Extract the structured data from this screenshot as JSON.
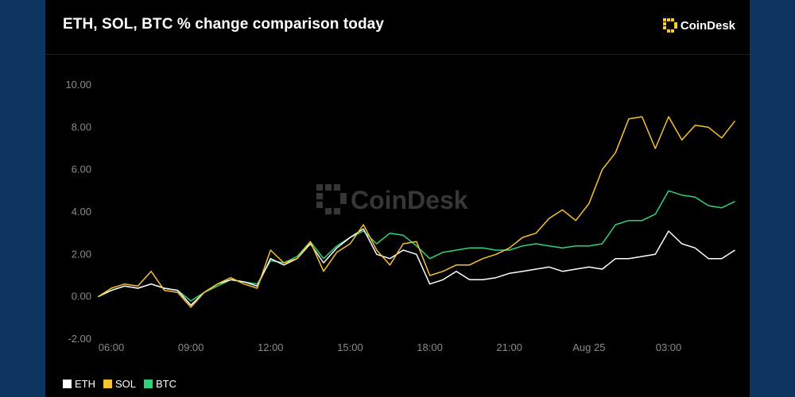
{
  "header": {
    "title": "ETH, SOL, BTC % change comparison today",
    "logo_text": "CoinDesk",
    "watermark_text": "CoinDesk"
  },
  "colors": {
    "background": "#0d3560",
    "card": "#000000",
    "brand_yellow": "#f8cf1e",
    "ETH": "#ffffff",
    "SOL": "#f4c430",
    "BTC": "#2ed47a",
    "tick_text": "#8a8a8a",
    "gridline": "#2a2a2a"
  },
  "legend": {
    "position": "bottom-left",
    "items": [
      {
        "label": "ETH",
        "color": "#ffffff"
      },
      {
        "label": "SOL",
        "color": "#f4c430"
      },
      {
        "label": "BTC",
        "color": "#2ed47a"
      }
    ]
  },
  "chart_data": {
    "type": "line",
    "title": "ETH, SOL, BTC % change comparison today",
    "xlabel": "",
    "ylabel": "",
    "ylim": [
      -2,
      10
    ],
    "xlim": [
      5.5,
      29.6
    ],
    "y_ticks": [
      10,
      8,
      6,
      4,
      2,
      0,
      -2
    ],
    "y_tick_labels": [
      "10.00",
      "8.00",
      "6.00",
      "4.00",
      "2.00",
      "0.00",
      "-2.00"
    ],
    "x_ticks": [
      6,
      9,
      12,
      15,
      18,
      21,
      24,
      27
    ],
    "x_tick_labels": [
      "06:00",
      "09:00",
      "12:00",
      "15:00",
      "18:00",
      "21:00",
      "Aug 25",
      "03:00"
    ],
    "grid": false,
    "x": [
      5.5,
      6.0,
      6.5,
      7.0,
      7.5,
      8.0,
      8.5,
      9.0,
      9.5,
      10.0,
      10.5,
      11.0,
      11.5,
      12.0,
      12.5,
      13.0,
      13.5,
      14.0,
      14.5,
      15.0,
      15.5,
      16.0,
      16.5,
      17.0,
      17.5,
      18.0,
      18.5,
      19.0,
      19.5,
      20.0,
      20.5,
      21.0,
      21.5,
      22.0,
      22.5,
      23.0,
      23.5,
      24.0,
      24.5,
      25.0,
      25.5,
      26.0,
      26.5,
      27.0,
      27.5,
      28.0,
      28.5,
      29.0,
      29.5
    ],
    "series": [
      {
        "name": "ETH",
        "values": [
          0.0,
          0.3,
          0.5,
          0.4,
          0.6,
          0.4,
          0.3,
          -0.4,
          0.2,
          0.6,
          0.8,
          0.7,
          0.5,
          1.8,
          1.5,
          1.8,
          2.5,
          1.6,
          2.3,
          2.8,
          3.2,
          2.0,
          1.8,
          2.2,
          2.0,
          0.6,
          0.8,
          1.2,
          0.8,
          0.8,
          0.9,
          1.1,
          1.2,
          1.3,
          1.4,
          1.2,
          1.3,
          1.4,
          1.3,
          1.8,
          1.8,
          1.9,
          2.0,
          3.1,
          2.5,
          2.3,
          1.8,
          1.8,
          2.2
        ]
      },
      {
        "name": "SOL",
        "values": [
          0.0,
          0.4,
          0.6,
          0.5,
          1.2,
          0.3,
          0.2,
          -0.5,
          0.2,
          0.6,
          0.9,
          0.6,
          0.4,
          2.2,
          1.6,
          1.8,
          2.6,
          1.2,
          2.1,
          2.5,
          3.4,
          2.2,
          1.5,
          2.5,
          2.6,
          1.0,
          1.2,
          1.5,
          1.5,
          1.8,
          2.0,
          2.3,
          2.8,
          3.0,
          3.7,
          4.1,
          3.6,
          4.4,
          6.0,
          6.8,
          8.4,
          8.5,
          7.0,
          8.5,
          7.4,
          8.1,
          8.0,
          7.5,
          8.3
        ]
      },
      {
        "name": "BTC",
        "values": [
          0.0,
          0.3,
          0.5,
          0.4,
          0.6,
          0.4,
          0.3,
          -0.2,
          0.2,
          0.5,
          0.8,
          0.7,
          0.6,
          1.7,
          1.6,
          1.9,
          2.6,
          1.8,
          2.4,
          2.8,
          3.1,
          2.5,
          3.0,
          2.9,
          2.4,
          1.8,
          2.1,
          2.2,
          2.3,
          2.3,
          2.2,
          2.2,
          2.4,
          2.5,
          2.4,
          2.3,
          2.4,
          2.4,
          2.5,
          3.4,
          3.6,
          3.6,
          3.9,
          5.0,
          4.8,
          4.7,
          4.3,
          4.2,
          4.5
        ]
      }
    ]
  }
}
